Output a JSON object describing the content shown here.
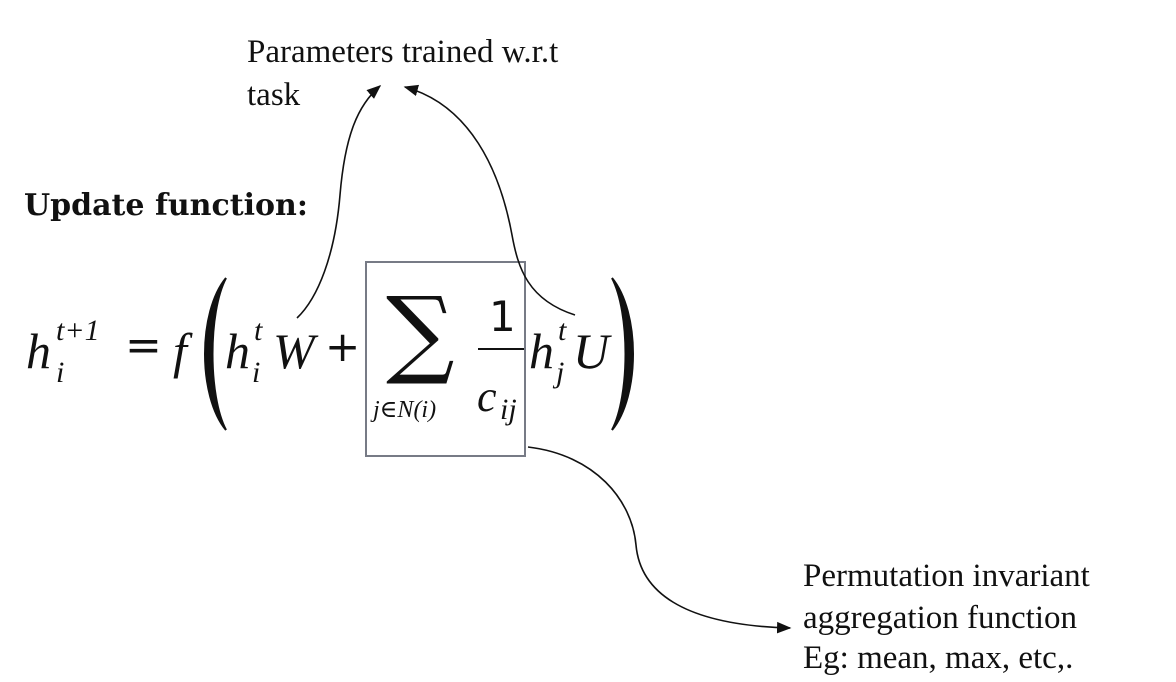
{
  "annotations": {
    "params_line1": "Parameters trained w.r.t",
    "params_line2": "task",
    "heading": "Update function:",
    "agg_line1": "Permutation invariant",
    "agg_line2": "aggregation function",
    "agg_line3": "Eg: mean, max, etc,."
  },
  "equation": {
    "h": "h",
    "i": "i",
    "t_plus_1": "t+1",
    "equals": "=",
    "f": "f",
    "t": "t",
    "W": "W",
    "plus": "+",
    "sigma": "∑",
    "limits": "j∈N(i)",
    "one": "1",
    "c": "c",
    "ij": "ij",
    "j": "j",
    "U": "U"
  },
  "colors": {
    "text": "#111111",
    "box_border": "#777b86",
    "arrow": "#111111"
  }
}
